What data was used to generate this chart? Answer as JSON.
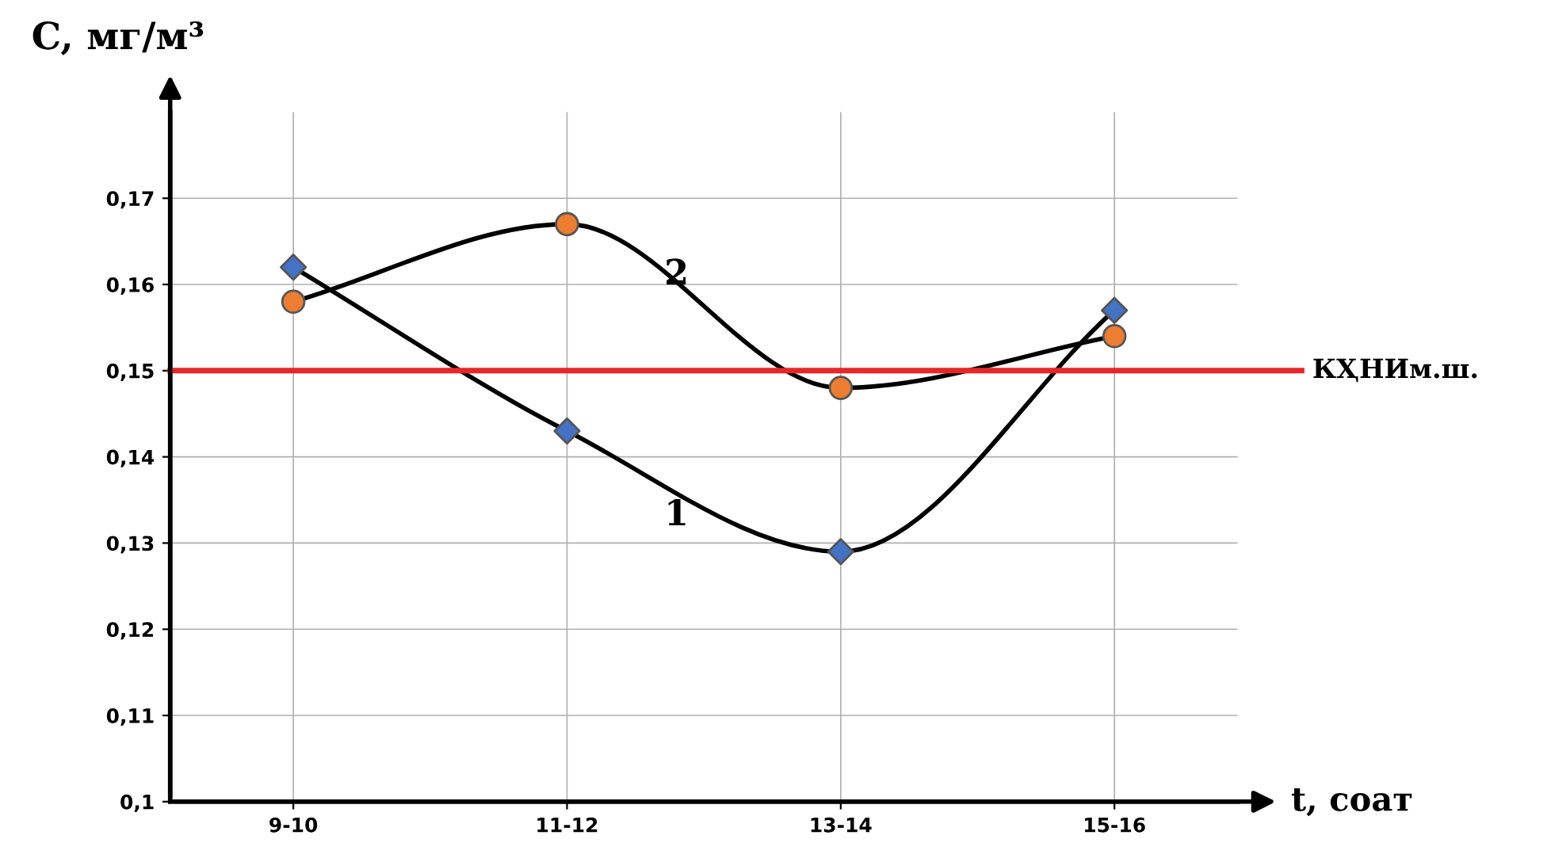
{
  "chart_data": {
    "type": "line",
    "xlabel": "t, соат",
    "ylabel": "C, мг/м³",
    "categories": [
      "9-10",
      "11-12",
      "13-14",
      "15-16"
    ],
    "series": [
      {
        "name": "1",
        "color": "#000000",
        "colors": [
          "#4472c4",
          "#4472c4",
          "#4472c4",
          "#4472c4"
        ],
        "marker": "diamond",
        "values": [
          0.162,
          0.143,
          0.129,
          0.157
        ]
      },
      {
        "name": "2",
        "color": "#000000",
        "colors": [
          "#ed7d31",
          "#ed7d31",
          "#ed7d31",
          "#ed7d31"
        ],
        "marker": "circle",
        "values": [
          0.158,
          0.167,
          0.148,
          0.154
        ]
      }
    ],
    "ylim": [
      0.1,
      0.18
    ],
    "yticks": [
      {
        "value": 0.1,
        "label": "0,1"
      },
      {
        "value": 0.11,
        "label": "0,11"
      },
      {
        "value": 0.12,
        "label": "0,12"
      },
      {
        "value": 0.13,
        "label": "0,13"
      },
      {
        "value": 0.14,
        "label": "0,14"
      },
      {
        "value": 0.15,
        "label": "0,15"
      },
      {
        "value": 0.16,
        "label": "0,16"
      },
      {
        "value": 0.17,
        "label": "0,17"
      }
    ],
    "ref_lines": [
      {
        "axis": "y",
        "value": 0.15,
        "label": "КҲНИм.ш.",
        "color": "#e8262a"
      }
    ],
    "grid": true,
    "legend": false
  }
}
